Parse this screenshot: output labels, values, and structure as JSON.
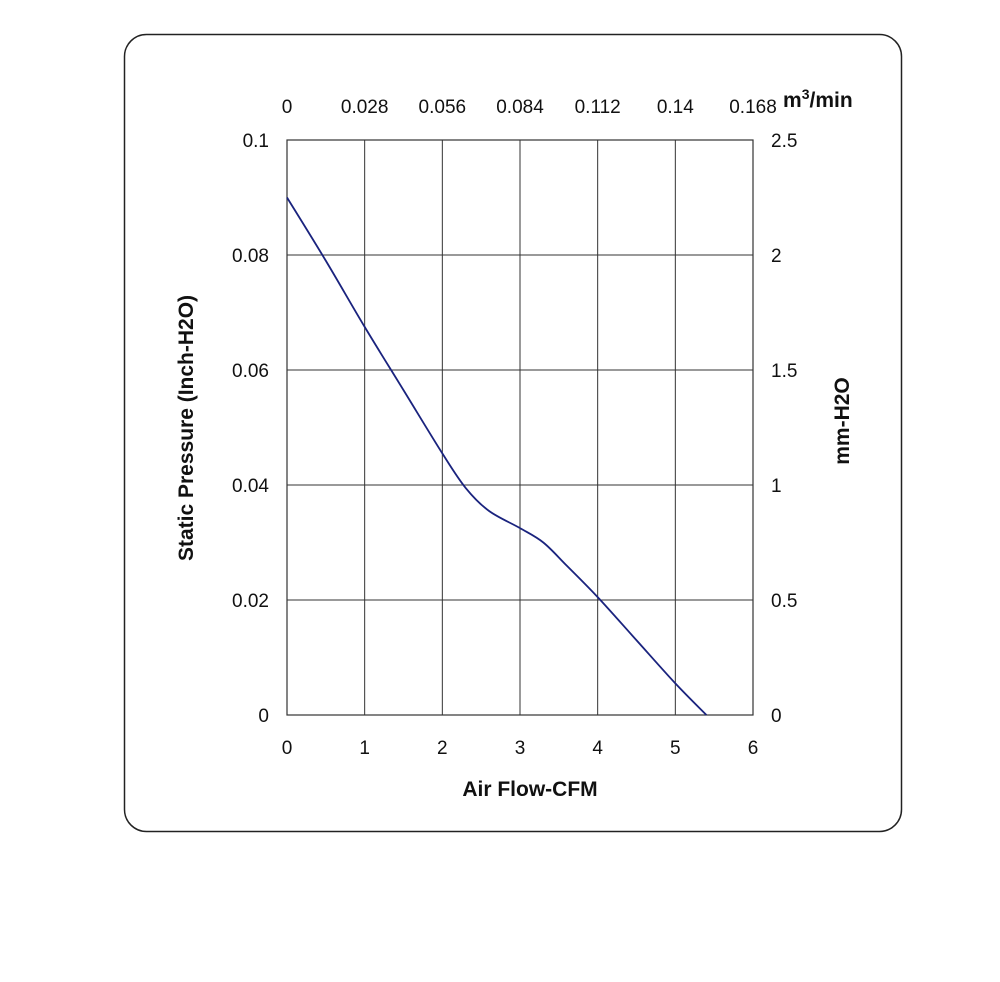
{
  "chart_data": {
    "type": "line",
    "xlabel": "Air Flow-CFM",
    "ylabel": "Static Pressure (Inch-H2O)",
    "y2label": "mm-H2O",
    "x2label": {
      "base": "m",
      "sup": "3",
      "tail": "/min"
    },
    "xlim": [
      0,
      6
    ],
    "ylim": [
      0,
      0.1
    ],
    "y2lim": [
      0,
      2.5
    ],
    "x2lim": [
      0,
      0.168
    ],
    "x_ticks": [
      "0",
      "1",
      "2",
      "3",
      "4",
      "5",
      "6"
    ],
    "y_ticks": [
      "0",
      "0.02",
      "0.04",
      "0.06",
      "0.08",
      "0.1"
    ],
    "y2_ticks": [
      "0",
      "0.5",
      "1",
      "1.5",
      "2",
      "2.5"
    ],
    "x2_ticks": [
      "0",
      "0.028",
      "0.056",
      "0.084",
      "0.112",
      "0.14",
      "0.168"
    ],
    "grid": true,
    "series": [
      {
        "color": "#1a237e",
        "x": [
          0,
          0.5,
          1.0,
          1.5,
          2.0,
          2.3,
          2.6,
          3.0,
          3.3,
          3.6,
          4.0,
          4.5,
          5.0,
          5.4
        ],
        "y": [
          0.09,
          0.079,
          0.0675,
          0.0565,
          0.0455,
          0.0395,
          0.0355,
          0.0325,
          0.03,
          0.026,
          0.0205,
          0.013,
          0.0055,
          0
        ]
      }
    ]
  },
  "colors": {
    "frame": "#222222",
    "grid": "#333333",
    "line": "#1a237e"
  }
}
